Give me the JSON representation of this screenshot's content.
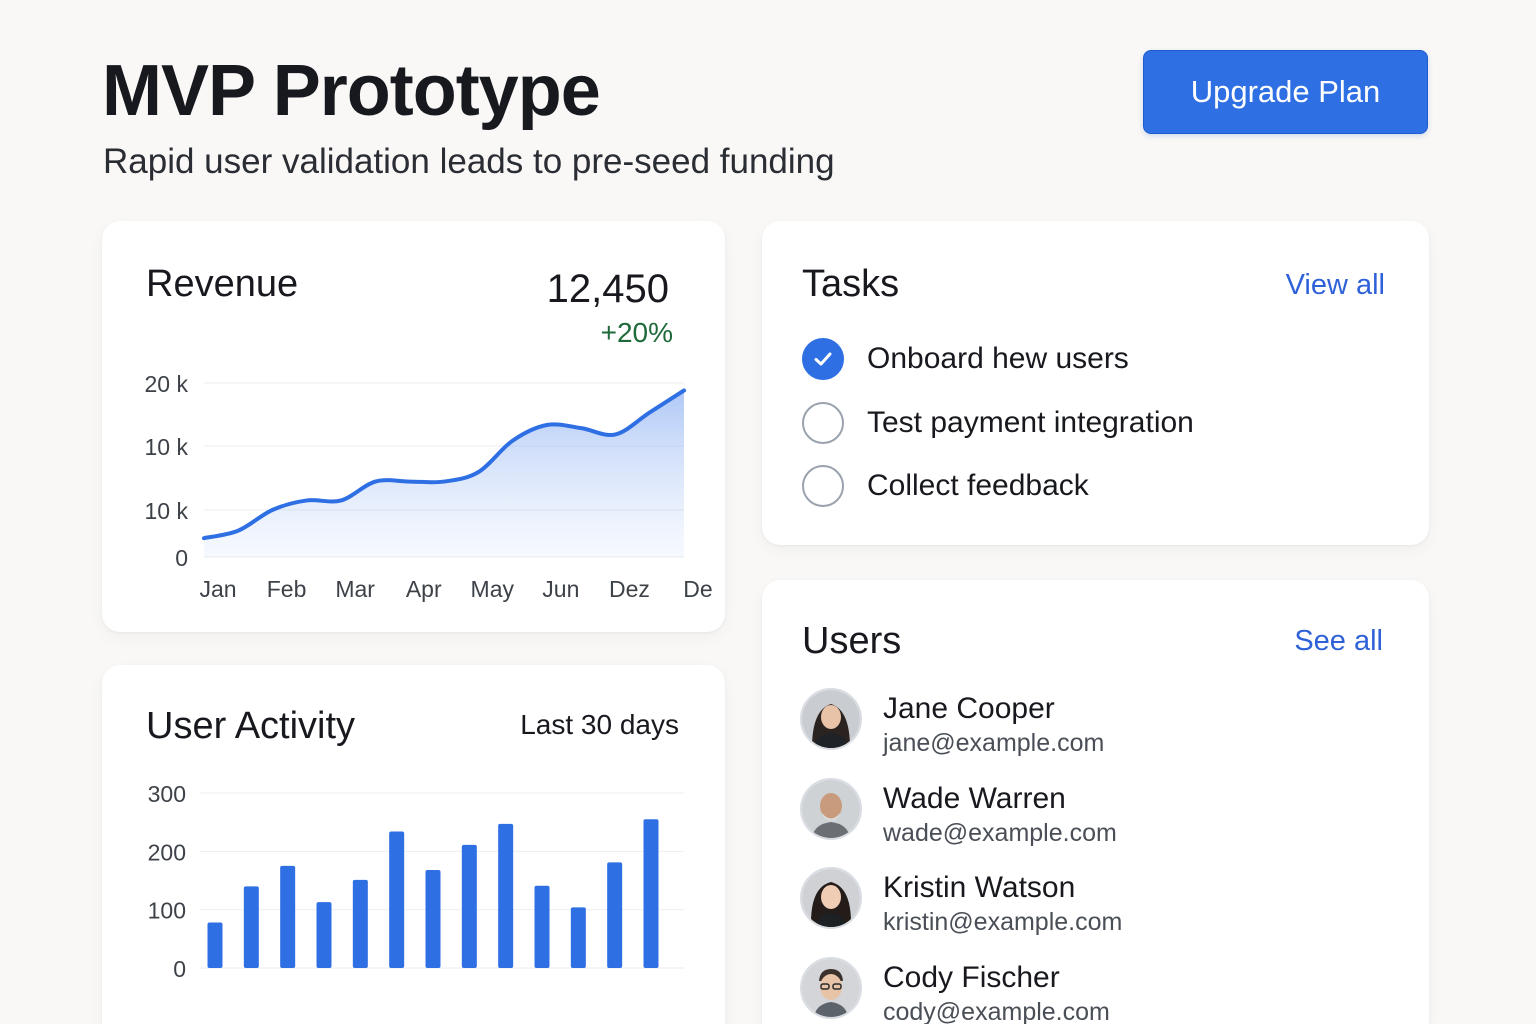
{
  "header": {
    "title": "MVP Prototype",
    "subtitle": "Rapid user validation leads to pre-seed funding",
    "upgrade_label": "Upgrade Plan"
  },
  "revenue": {
    "title": "Revenue",
    "value": "12,450",
    "change": "+20%"
  },
  "tasks": {
    "title": "Tasks",
    "view_all": "View all",
    "items": [
      {
        "label": "Onboard hew users",
        "done": true
      },
      {
        "label": "Test payment integration",
        "done": false
      },
      {
        "label": "Collect feedback",
        "done": false
      }
    ]
  },
  "users": {
    "title": "Users",
    "see_all": "See all",
    "items": [
      {
        "name": "Jane Cooper",
        "email": "jane@example.com"
      },
      {
        "name": "Wade Warren",
        "email": "wade@example.com"
      },
      {
        "name": "Kristin Watson",
        "email": "kristin@example.com"
      },
      {
        "name": "Cody Fischer",
        "email": "cody@example.com"
      }
    ]
  },
  "activity": {
    "title": "User Activity",
    "range": "Last 30 days"
  },
  "colors": {
    "accent": "#2f6fe4",
    "positive": "#1f6a3a",
    "link": "#2f62d8"
  },
  "chart_data": [
    {
      "type": "area",
      "title": "Revenue",
      "y_tick_labels": [
        "0",
        "10 k",
        "10 k",
        "20 k"
      ],
      "categories": [
        "Jan",
        "Feb",
        "Mar",
        "Apr",
        "May",
        "Jun",
        "Dez",
        "De"
      ],
      "x": [
        0,
        0.5,
        1.0,
        1.5,
        2.0,
        2.5,
        3.0,
        3.5,
        4.0,
        4.5,
        5.0,
        5.5,
        6.0,
        6.5,
        7.0
      ],
      "values": [
        3000,
        4200,
        7500,
        9000,
        9000,
        12000,
        12000,
        12000,
        13500,
        18500,
        21000,
        20500,
        19500,
        23000,
        26500
      ],
      "ylim": [
        0,
        28000
      ],
      "grid": true
    },
    {
      "type": "bar",
      "title": "User Activity",
      "y_ticks": [
        0,
        100,
        200,
        300
      ],
      "values": [
        78,
        140,
        175,
        113,
        151,
        234,
        168,
        211,
        247,
        141,
        104,
        181,
        255
      ],
      "ylim": [
        0,
        300
      ],
      "grid": true
    }
  ]
}
